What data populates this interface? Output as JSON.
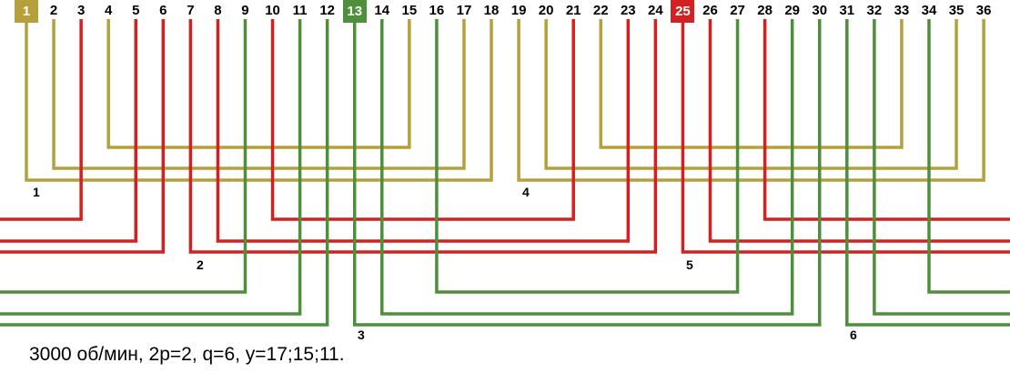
{
  "colors": {
    "yellow": "#b5a03c",
    "red": "#d42020",
    "green": "#4e8f3c"
  },
  "slots": [
    "1",
    "2",
    "3",
    "4",
    "5",
    "6",
    "7",
    "8",
    "9",
    "10",
    "11",
    "12",
    "13",
    "14",
    "15",
    "16",
    "17",
    "18",
    "19",
    "20",
    "21",
    "22",
    "23",
    "24",
    "25",
    "26",
    "27",
    "28",
    "29",
    "30",
    "31",
    "32",
    "33",
    "34",
    "35",
    "36"
  ],
  "slot_colors": [
    "yellow",
    "yellow",
    "red",
    "yellow",
    "red",
    "red",
    "red",
    "red",
    "green",
    "red",
    "green",
    "green",
    "green",
    "green",
    "yellow",
    "green",
    "yellow",
    "yellow",
    "yellow",
    "yellow",
    "red",
    "yellow",
    "red",
    "red",
    "red",
    "red",
    "green",
    "red",
    "green",
    "green",
    "green",
    "green",
    "yellow",
    "green",
    "yellow",
    "yellow"
  ],
  "highlighted_slots": [
    {
      "slot": 1,
      "color": "yellow"
    },
    {
      "slot": 13,
      "color": "green"
    },
    {
      "slot": 25,
      "color": "red"
    }
  ],
  "groups": [
    {
      "label": "1",
      "color": "yellow",
      "connections": [
        [
          1,
          18
        ],
        [
          2,
          17
        ],
        [
          4,
          15
        ]
      ]
    },
    {
      "label": "4",
      "color": "yellow",
      "connections": [
        [
          19,
          36
        ],
        [
          20,
          35
        ],
        [
          22,
          33
        ]
      ]
    },
    {
      "label": "2",
      "color": "red",
      "connections": [
        [
          3,
          "left"
        ],
        [
          5,
          "left"
        ],
        [
          6,
          "left"
        ],
        [
          7,
          24
        ],
        [
          8,
          23
        ],
        [
          10,
          21
        ]
      ]
    },
    {
      "label": "5",
      "color": "red",
      "connections": [
        [
          25,
          "right"
        ],
        [
          26,
          "right"
        ],
        [
          28,
          "right"
        ]
      ]
    },
    {
      "label": "3",
      "color": "green",
      "connections": [
        [
          9,
          "left"
        ],
        [
          11,
          "left"
        ],
        [
          12,
          "left"
        ],
        [
          13,
          30
        ],
        [
          14,
          29
        ],
        [
          16,
          27
        ]
      ]
    },
    {
      "label": "6",
      "color": "green",
      "connections": [
        [
          31,
          "right"
        ],
        [
          32,
          "right"
        ],
        [
          34,
          "right"
        ]
      ]
    }
  ],
  "caption": "3000 об/мин, 2р=2, q=6, y=17;15;11."
}
